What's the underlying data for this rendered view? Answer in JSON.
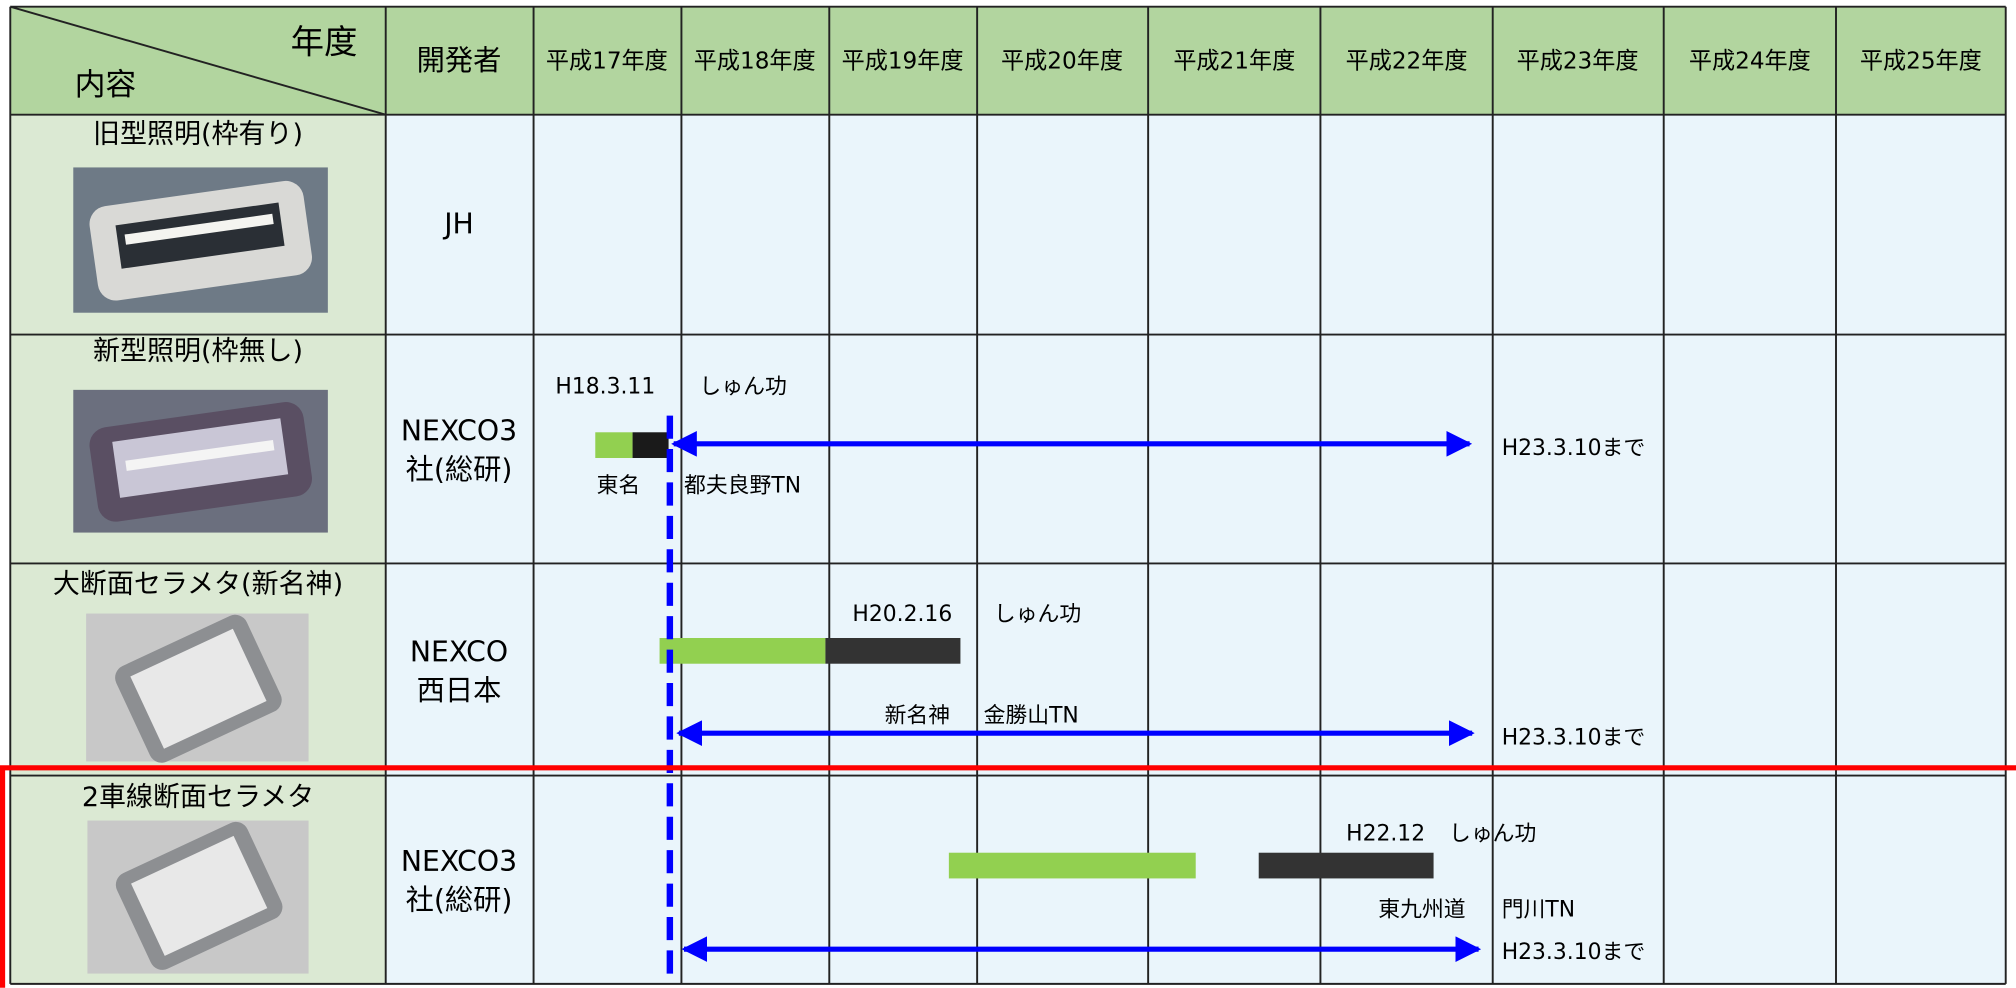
{
  "header": {
    "corner_top": "年度",
    "corner_bottom": "内容",
    "developer": "開発者",
    "years": [
      "平成17年度",
      "平成18年度",
      "平成19年度",
      "平成20年度",
      "平成21年度",
      "平成22年度",
      "平成23年度",
      "平成24年度",
      "平成25年度"
    ]
  },
  "rows": [
    {
      "title": "旧型照明(枠有り)",
      "developer": [
        "JH"
      ],
      "annotations": []
    },
    {
      "title": "新型照明(枠無し)",
      "developer": [
        "NEXCO3",
        "社(総研)"
      ],
      "annotations": [
        "H18.3.11",
        "しゅん功",
        "東名",
        "都夫良野TN",
        "H23.3.10まで"
      ]
    },
    {
      "title": "大断面セラメタ(新名神)",
      "developer": [
        "NEXCO",
        "西日本"
      ],
      "annotations": [
        "H20.2.16",
        "しゅん功",
        "新名神",
        "金勝山TN",
        "H23.3.10まで"
      ]
    },
    {
      "title": "2車線断面セラメタ",
      "developer": [
        "NEXCO3",
        "社(総研)"
      ],
      "annotations": [
        "H22.12",
        "しゅん功",
        "東九州道",
        "門川TN",
        "H23.3.10まで"
      ]
    }
  ]
}
